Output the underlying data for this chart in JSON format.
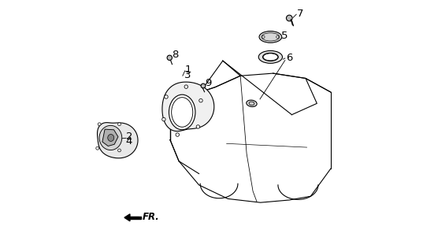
{
  "bg_color": "#ffffff",
  "line_color": "#000000",
  "fig_width": 5.37,
  "fig_height": 3.2,
  "dpi": 100
}
